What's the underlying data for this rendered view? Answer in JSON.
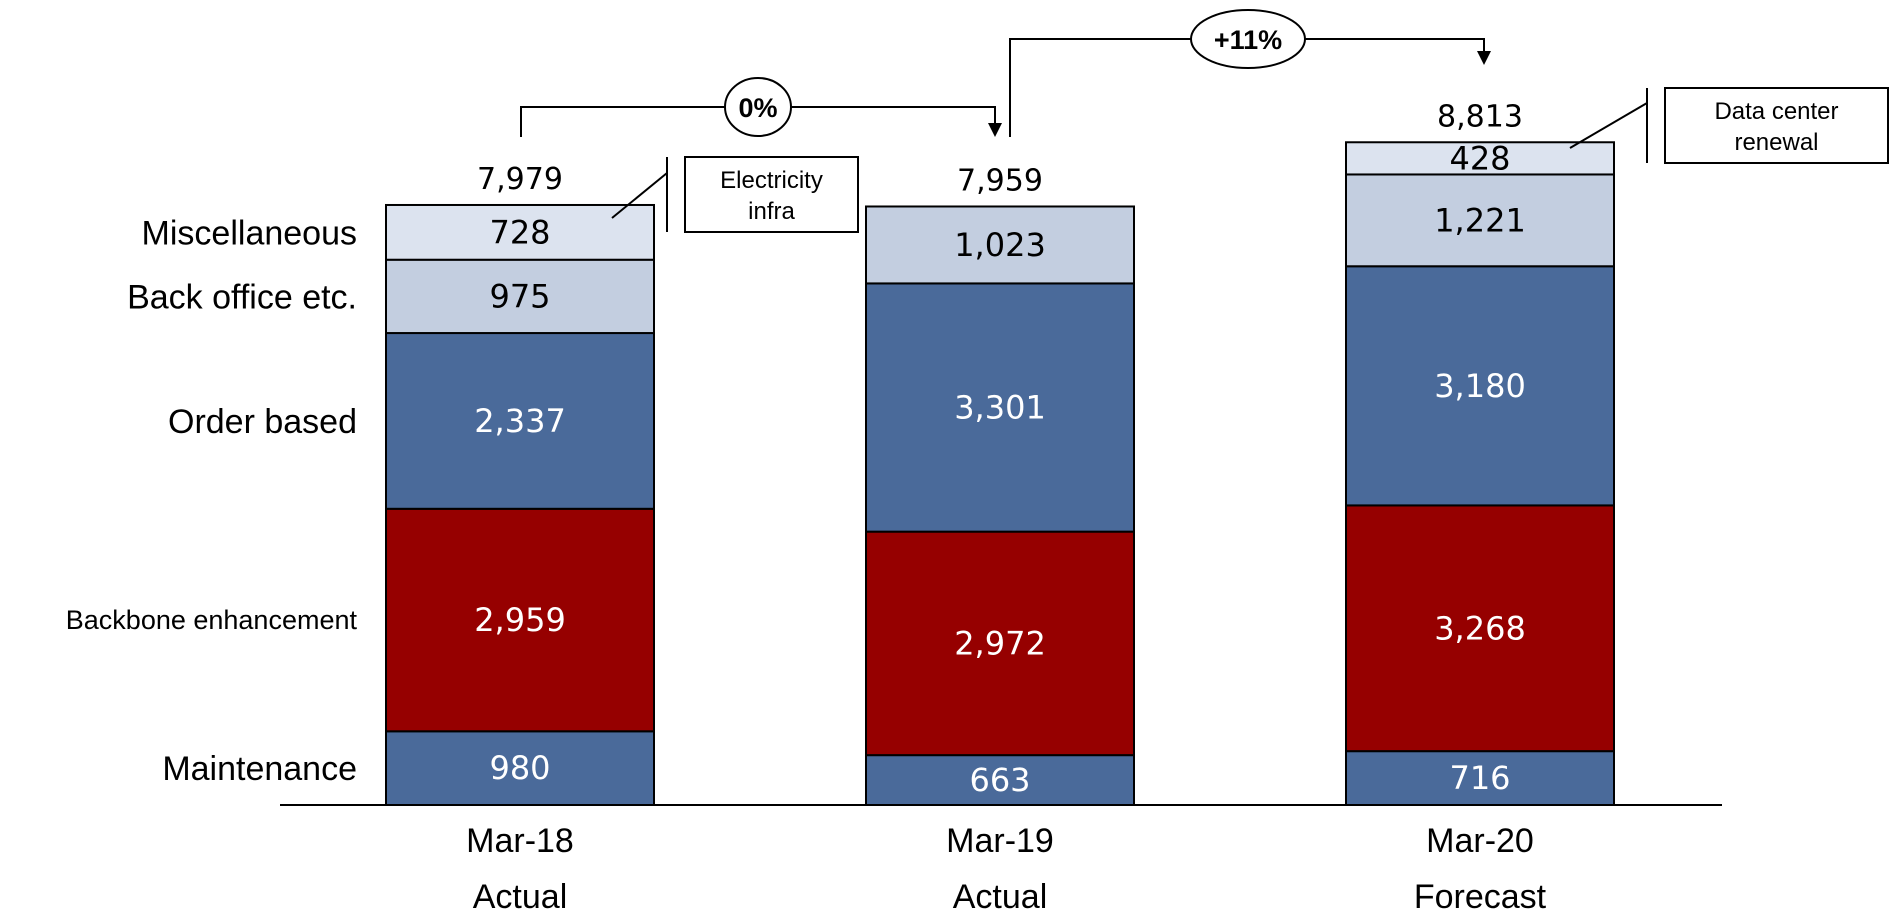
{
  "chart_data": {
    "type": "bar",
    "stacked": true,
    "categories": [
      "Mar-18",
      "Mar-19",
      "Mar-20"
    ],
    "category_sublabels": [
      "Actual",
      "Actual",
      "Forecast"
    ],
    "series": [
      {
        "name": "Maintenance",
        "values": [
          980,
          663,
          716
        ],
        "color": "#4A6A9A"
      },
      {
        "name": "Backbone enhancement",
        "values": [
          2959,
          2972,
          3268
        ],
        "color": "#960000"
      },
      {
        "name": "Order based",
        "values": [
          2337,
          3301,
          3180
        ],
        "color": "#4A6A9A"
      },
      {
        "name": "Back office etc.",
        "values": [
          975,
          1023,
          1221
        ],
        "color": "#C3CEE0"
      },
      {
        "name": "Miscellaneous",
        "values": [
          728,
          0,
          0
        ],
        "color": "#DCE3EF"
      },
      {
        "name": "",
        "values": [
          0,
          0,
          428
        ],
        "color": "#DCE3EF"
      }
    ],
    "value_labels": [
      [
        "980",
        "2,959",
        "2,337",
        "975",
        "728",
        ""
      ],
      [
        "663",
        "2,972",
        "3,301",
        "1,023",
        "",
        ""
      ],
      [
        "716",
        "3,268",
        "3,180",
        "1,221",
        "",
        "428"
      ]
    ],
    "totals": [
      7979,
      7959,
      8813
    ],
    "total_labels": [
      "7,979",
      "7,959",
      "8,813"
    ],
    "series_labels_left": [
      "Maintenance",
      "Backbone enhancement",
      "Order based",
      "Back office etc.",
      "Miscellaneous"
    ],
    "annotations": [
      {
        "text_lines": [
          "Electricity",
          "infra"
        ],
        "category": "Mar-18",
        "series_index": 4
      },
      {
        "text_lines": [
          "Data center",
          "renewal"
        ],
        "category": "Mar-20",
        "series_index": 5
      }
    ],
    "growth": [
      {
        "from": "Mar-18",
        "to": "Mar-19",
        "label": "0%"
      },
      {
        "from": "Mar-19",
        "to": "Mar-20",
        "label": "+11%"
      }
    ],
    "title": "",
    "xlabel": "",
    "ylabel": "",
    "legend": "left-labels",
    "grid": false,
    "colors": {
      "dark_text": "#000000",
      "light_text": "#ffffff",
      "border": "#000000"
    }
  }
}
